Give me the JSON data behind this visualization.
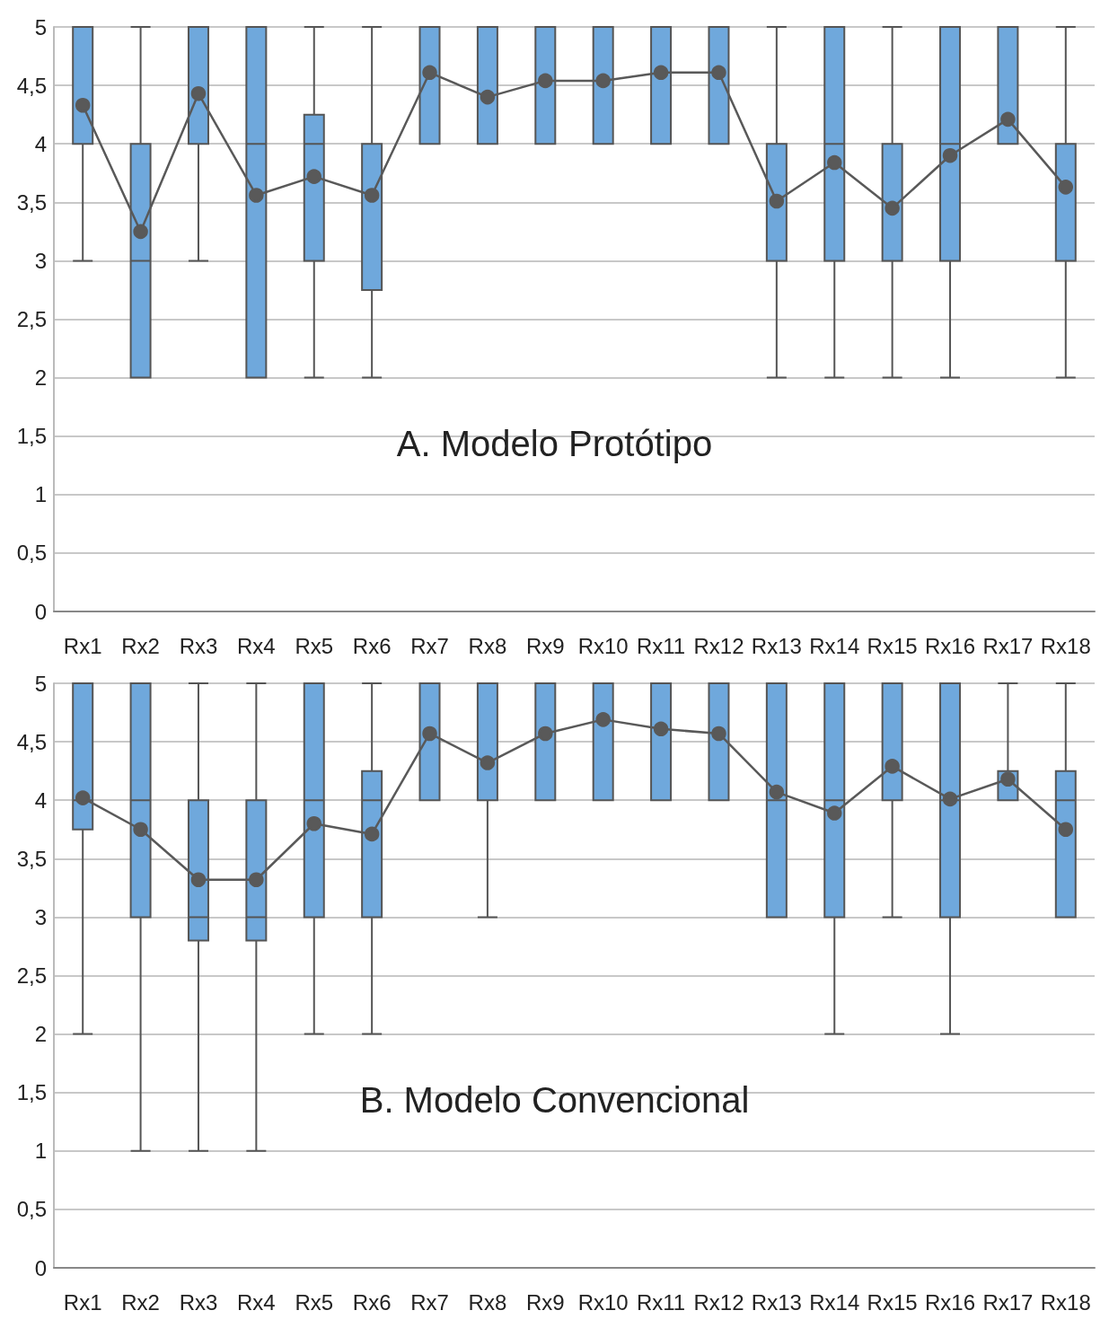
{
  "chart_data": [
    {
      "type": "box",
      "title": "A. Modelo Protótipo",
      "categories": [
        "Rx1",
        "Rx2",
        "Rx3",
        "Rx4",
        "Rx5",
        "Rx6",
        "Rx7",
        "Rx8",
        "Rx9",
        "Rx10",
        "Rx11",
        "Rx12",
        "Rx13",
        "Rx14",
        "Rx15",
        "Rx16",
        "Rx17",
        "Rx18"
      ],
      "ylim": [
        0,
        5
      ],
      "yticks": [
        0,
        {
          "value": 0.5,
          "label": "0,5"
        },
        1,
        {
          "value": 1.5,
          "label": "1,5"
        },
        2,
        {
          "value": 2.5,
          "label": "2,5"
        },
        3,
        {
          "value": 3.5,
          "label": "3,5"
        },
        4,
        {
          "value": 4.5,
          "label": "4,5"
        },
        5
      ],
      "grid": "y",
      "marker": "circle",
      "series": [
        {
          "type": "box",
          "color": "#6fa8dc",
          "boxes": [
            {
              "low": 3,
              "q1": 4,
              "median": 4,
              "q3": 5,
              "high": 5
            },
            {
              "low": 2,
              "q1": 2,
              "median": 3,
              "q3": 4,
              "high": 5
            },
            {
              "low": 3,
              "q1": 4,
              "median": 4,
              "q3": 5,
              "high": 5
            },
            {
              "low": 2,
              "q1": 2,
              "median": 4,
              "q3": 5,
              "high": 5
            },
            {
              "low": 2,
              "q1": 3,
              "median": 4,
              "q3": 4.25,
              "high": 5
            },
            {
              "low": 2,
              "q1": 2.75,
              "median": 4,
              "q3": 4,
              "high": 5
            },
            {
              "low": 4,
              "q1": 4,
              "median": 5,
              "q3": 5,
              "high": 5
            },
            {
              "low": 4,
              "q1": 4,
              "median": 4,
              "q3": 5,
              "high": 5
            },
            {
              "low": 4,
              "q1": 4,
              "median": 5,
              "q3": 5,
              "high": 5
            },
            {
              "low": 4,
              "q1": 4,
              "median": 5,
              "q3": 5,
              "high": 5
            },
            {
              "low": 4,
              "q1": 4,
              "median": 5,
              "q3": 5,
              "high": 5
            },
            {
              "low": 4,
              "q1": 4,
              "median": 5,
              "q3": 5,
              "high": 5
            },
            {
              "low": 2,
              "q1": 3,
              "median": 3,
              "q3": 4,
              "high": 5
            },
            {
              "low": 2,
              "q1": 3,
              "median": 4,
              "q3": 5,
              "high": 5
            },
            {
              "low": 2,
              "q1": 3,
              "median": 3,
              "q3": 4,
              "high": 5
            },
            {
              "low": 2,
              "q1": 3,
              "median": 4,
              "q3": 5,
              "high": 5
            },
            {
              "low": 4,
              "q1": 4,
              "median": 4,
              "q3": 5,
              "high": 5
            },
            {
              "low": 2,
              "q1": 3,
              "median": 4,
              "q3": 4,
              "high": 5
            }
          ]
        },
        {
          "type": "line",
          "color": "#595959",
          "values": [
            4.33,
            3.25,
            4.43,
            3.56,
            3.72,
            3.56,
            4.61,
            4.4,
            4.54,
            4.54,
            4.61,
            4.61,
            3.51,
            3.84,
            3.45,
            3.9,
            4.21,
            3.63
          ]
        }
      ]
    },
    {
      "type": "box",
      "title": "B. Modelo Convencional",
      "categories": [
        "Rx1",
        "Rx2",
        "Rx3",
        "Rx4",
        "Rx5",
        "Rx6",
        "Rx7",
        "Rx8",
        "Rx9",
        "Rx10",
        "Rx11",
        "Rx12",
        "Rx13",
        "Rx14",
        "Rx15",
        "Rx16",
        "Rx17",
        "Rx18"
      ],
      "ylim": [
        0,
        5
      ],
      "yticks": [
        0,
        {
          "value": 0.5,
          "label": "0,5"
        },
        1,
        {
          "value": 1.5,
          "label": "1,5"
        },
        2,
        {
          "value": 2.5,
          "label": "2,5"
        },
        3,
        {
          "value": 3.5,
          "label": "3,5"
        },
        4,
        {
          "value": 4.5,
          "label": "4,5"
        },
        5
      ],
      "grid": "y",
      "marker": "circle",
      "series": [
        {
          "type": "box",
          "color": "#6fa8dc",
          "boxes": [
            {
              "low": 2,
              "q1": 3.75,
              "median": 4,
              "q3": 5,
              "high": 5
            },
            {
              "low": 1,
              "q1": 3,
              "median": 4,
              "q3": 5,
              "high": 5
            },
            {
              "low": 1,
              "q1": 2.8,
              "median": 3,
              "q3": 4,
              "high": 5
            },
            {
              "low": 1,
              "q1": 2.8,
              "median": 3,
              "q3": 4,
              "high": 5
            },
            {
              "low": 2,
              "q1": 3,
              "median": 4,
              "q3": 5,
              "high": 5
            },
            {
              "low": 2,
              "q1": 3,
              "median": 4,
              "q3": 4.25,
              "high": 5
            },
            {
              "low": 4,
              "q1": 4,
              "median": 5,
              "q3": 5,
              "high": 5
            },
            {
              "low": 3,
              "q1": 4,
              "median": 4,
              "q3": 5,
              "high": 5
            },
            {
              "low": 4,
              "q1": 4,
              "median": 5,
              "q3": 5,
              "high": 5
            },
            {
              "low": 4,
              "q1": 4,
              "median": 5,
              "q3": 5,
              "high": 5
            },
            {
              "low": 4,
              "q1": 4,
              "median": 5,
              "q3": 5,
              "high": 5
            },
            {
              "low": 4,
              "q1": 4,
              "median": 5,
              "q3": 5,
              "high": 5
            },
            {
              "low": 3,
              "q1": 3,
              "median": 4,
              "q3": 5,
              "high": 5
            },
            {
              "low": 2,
              "q1": 3,
              "median": 4,
              "q3": 5,
              "high": 5
            },
            {
              "low": 3,
              "q1": 4,
              "median": 4,
              "q3": 5,
              "high": 5
            },
            {
              "low": 2,
              "q1": 3,
              "median": 4,
              "q3": 5,
              "high": 5
            },
            {
              "low": 4,
              "q1": 4,
              "median": 4,
              "q3": 4.25,
              "high": 5
            },
            {
              "low": 3,
              "q1": 3,
              "median": 4,
              "q3": 4.25,
              "high": 5
            }
          ]
        },
        {
          "type": "line",
          "color": "#595959",
          "values": [
            4.02,
            3.75,
            3.32,
            3.32,
            3.8,
            3.71,
            4.57,
            4.32,
            4.57,
            4.69,
            4.61,
            4.57,
            4.07,
            3.89,
            4.29,
            4.01,
            4.18,
            3.75
          ]
        }
      ]
    }
  ]
}
